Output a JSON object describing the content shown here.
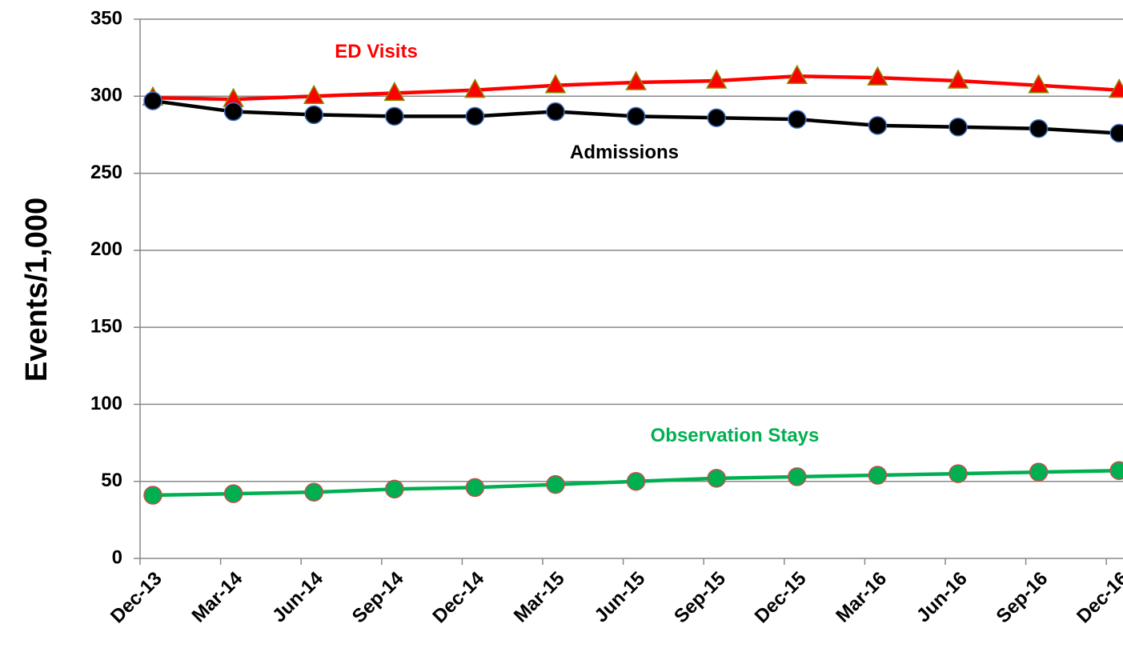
{
  "chart_data": {
    "type": "line",
    "ylabel": "Events/1,000",
    "categories": [
      "Dec-13",
      "Mar-14",
      "Jun-14",
      "Sep-14",
      "Dec-14",
      "Mar-15",
      "Jun-15",
      "Sep-15",
      "Dec-15",
      "Mar-16",
      "Jun-16",
      "Sep-16",
      "Dec-16"
    ],
    "series": [
      {
        "name": "ED Visits",
        "color": "#ff0000",
        "marker": "triangle",
        "marker_fill": "#ff0000",
        "marker_edge": "#8a8a00",
        "values": [
          299,
          298,
          300,
          302,
          304,
          307,
          309,
          310,
          313,
          312,
          310,
          307,
          304
        ]
      },
      {
        "name": "Admissions",
        "color": "#000000",
        "marker": "circle",
        "marker_fill": "#000000",
        "marker_edge": "#4472c4",
        "values": [
          297,
          290,
          288,
          287,
          287,
          290,
          287,
          286,
          285,
          281,
          280,
          279,
          276
        ]
      },
      {
        "name": "Observation Stays",
        "color": "#00b050",
        "marker": "circle",
        "marker_fill": "#00b050",
        "marker_edge": "#c0504d",
        "values": [
          41,
          42,
          43,
          45,
          46,
          48,
          50,
          52,
          53,
          54,
          55,
          56,
          57
        ]
      }
    ],
    "ylim": [
      0,
      350
    ],
    "yticks": [
      0,
      50,
      100,
      150,
      200,
      250,
      300,
      350
    ],
    "grid": true
  }
}
